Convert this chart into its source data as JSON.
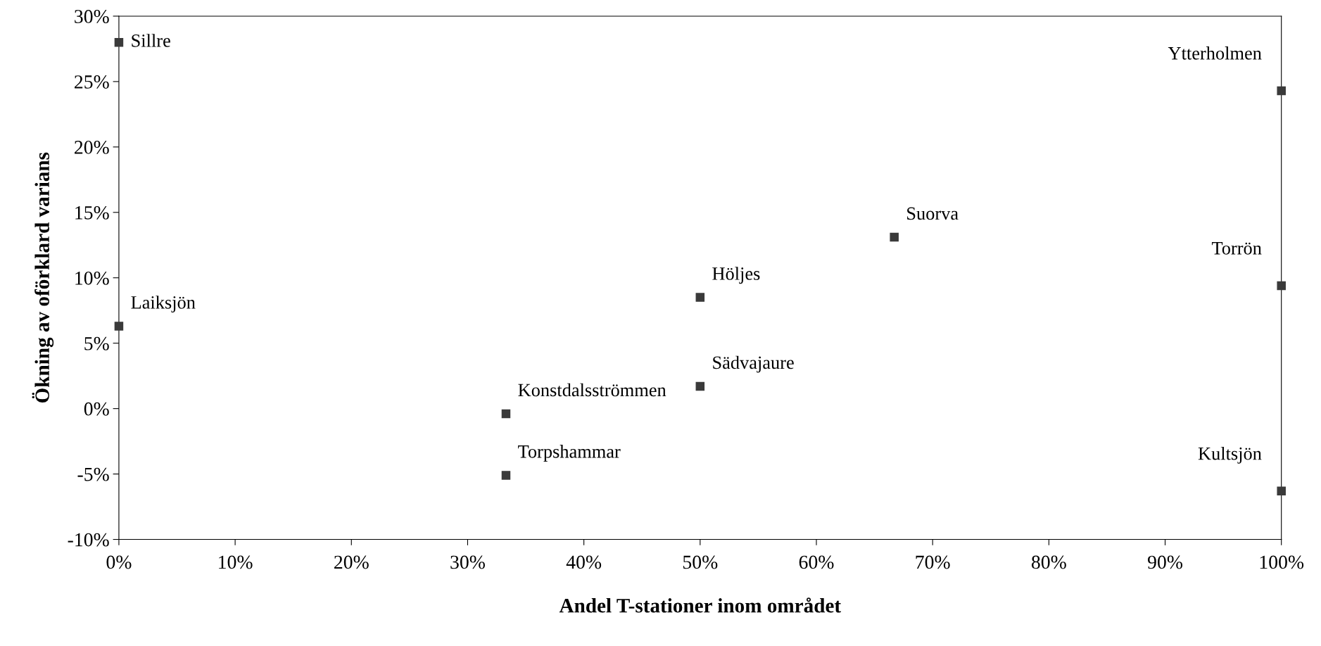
{
  "chart_data": {
    "type": "scatter",
    "xlabel": "Andel T-stationer inom området",
    "ylabel": "Ökning av oförklard varians",
    "x": [
      0,
      0,
      33.3,
      33.3,
      50,
      50,
      66.7,
      100,
      100,
      100
    ],
    "series": [
      {
        "color": "#3a3a3a",
        "values": [
          28,
          6.3,
          -0.4,
          -5.1,
          8.5,
          1.7,
          13.1,
          24.3,
          9.4,
          -6.3
        ]
      }
    ],
    "marker": "square",
    "grid": false,
    "legend": false,
    "xlim": [
      0,
      100
    ],
    "ylim": [
      -10,
      30
    ],
    "xticks": [
      {
        "value": 0,
        "label": "0%"
      },
      {
        "value": 10,
        "label": "10%"
      },
      {
        "value": 20,
        "label": "20%"
      },
      {
        "value": 30,
        "label": "30%"
      },
      {
        "value": 40,
        "label": "40%"
      },
      {
        "value": 50,
        "label": "50%"
      },
      {
        "value": 60,
        "label": "60%"
      },
      {
        "value": 70,
        "label": "70%"
      },
      {
        "value": 80,
        "label": "80%"
      },
      {
        "value": 90,
        "label": "90%"
      },
      {
        "value": 100,
        "label": "100%"
      }
    ],
    "yticks": [
      {
        "value": -10,
        "label": "-10%"
      },
      {
        "value": -5,
        "label": "-5%"
      },
      {
        "value": 0,
        "label": "0%"
      },
      {
        "value": 5,
        "label": "5%"
      },
      {
        "value": 10,
        "label": "10%"
      },
      {
        "value": 15,
        "label": "15%"
      },
      {
        "value": 20,
        "label": "20%"
      },
      {
        "value": 25,
        "label": "25%"
      },
      {
        "value": 30,
        "label": "30%"
      }
    ],
    "annotations": [
      {
        "text": "Sillre",
        "x": 0,
        "y": 28
      },
      {
        "text": "Laiksjön",
        "x": 0,
        "y": 6.3
      },
      {
        "text": "Konstdalsströmmen",
        "x": 33.3,
        "y": -0.4
      },
      {
        "text": "Torpshammar",
        "x": 33.3,
        "y": -5.1
      },
      {
        "text": "Höljes",
        "x": 50,
        "y": 8.5
      },
      {
        "text": "Sädvajaure",
        "x": 50,
        "y": 1.7
      },
      {
        "text": "Suorva",
        "x": 66.7,
        "y": 13.1
      },
      {
        "text": "Ytterholmen",
        "x": 100,
        "y": 24.3
      },
      {
        "text": "Torrön",
        "x": 100,
        "y": 9.4
      },
      {
        "text": "Kultsjön",
        "x": 100,
        "y": -6.3
      }
    ]
  }
}
